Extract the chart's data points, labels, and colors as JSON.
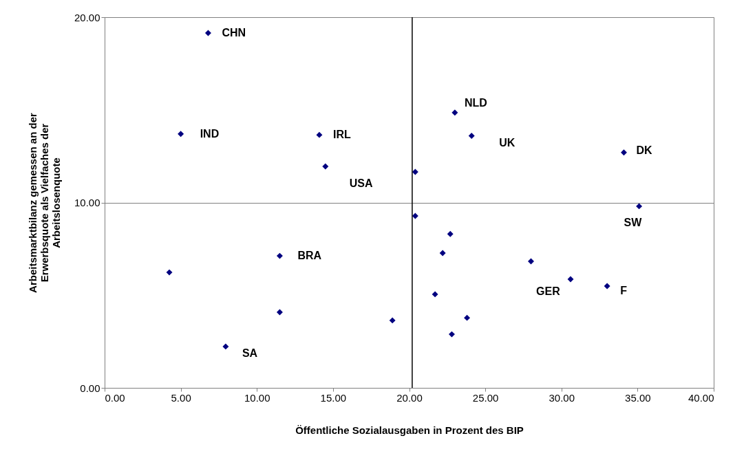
{
  "chart_data": {
    "type": "scatter",
    "xlabel": "Öffentliche Sozialausgaben in Prozent des BIP",
    "ylabel": "Arbeitsmarktbilanz gemessen an der\nErwerbsquote als Vielfaches der\nArbeitslosenquote",
    "x": [
      6.8,
      5.0,
      14.1,
      14.5,
      20.4,
      23.0,
      24.1,
      34.1,
      35.1,
      20.4,
      22.7,
      22.2,
      28.0,
      30.6,
      33.0,
      21.7,
      23.8,
      22.8,
      18.9,
      11.5,
      11.5,
      4.25,
      7.95
    ],
    "series": [
      {
        "color": "#000080",
        "values": [
          19.15,
          13.7,
          13.65,
          11.95,
          11.65,
          14.85,
          13.6,
          12.7,
          9.8,
          9.28,
          8.3,
          7.27,
          6.83,
          5.86,
          5.49,
          5.05,
          3.78,
          2.89,
          3.64,
          7.12,
          4.08,
          6.23,
          2.23
        ]
      }
    ],
    "marker": "diamond",
    "xlim": [
      0,
      40
    ],
    "ylim": [
      0,
      20
    ],
    "xticks": [
      {
        "value": 0,
        "label": "0.00"
      },
      {
        "value": 5,
        "label": "5.00"
      },
      {
        "value": 10,
        "label": "10.00"
      },
      {
        "value": 15,
        "label": "15.00"
      },
      {
        "value": 20,
        "label": "20.00"
      },
      {
        "value": 25,
        "label": "25.00"
      },
      {
        "value": 30,
        "label": "30.00"
      },
      {
        "value": 35,
        "label": "35.00"
      },
      {
        "value": 40,
        "label": "40.00"
      }
    ],
    "yticks": [
      {
        "value": 0,
        "label": "0.00"
      },
      {
        "value": 10,
        "label": "10.00"
      },
      {
        "value": 20,
        "label": "20.00"
      }
    ],
    "grid": "y",
    "ref_lines": [
      {
        "axis": "x",
        "value": 20.2,
        "color": "#000000"
      }
    ],
    "annotations": [
      {
        "text": "CHN",
        "x": 6.8,
        "y": 19.15
      },
      {
        "text": "IND",
        "x": 5.0,
        "y": 13.7
      },
      {
        "text": "IRL",
        "x": 14.1,
        "y": 13.65
      },
      {
        "text": "USA",
        "x": 14.5,
        "y": 11.95
      },
      {
        "text": "NLD",
        "x": 23.0,
        "y": 14.85
      },
      {
        "text": "UK",
        "x": 24.1,
        "y": 13.6
      },
      {
        "text": "DK",
        "x": 34.1,
        "y": 12.7
      },
      {
        "text": "SW",
        "x": 35.1,
        "y": 9.8
      },
      {
        "text": "GER",
        "x": 30.6,
        "y": 5.86
      },
      {
        "text": "F",
        "x": 33.0,
        "y": 5.49
      },
      {
        "text": "BRA",
        "x": 11.5,
        "y": 7.12
      },
      {
        "text": "SA",
        "x": 7.95,
        "y": 2.23
      }
    ]
  }
}
